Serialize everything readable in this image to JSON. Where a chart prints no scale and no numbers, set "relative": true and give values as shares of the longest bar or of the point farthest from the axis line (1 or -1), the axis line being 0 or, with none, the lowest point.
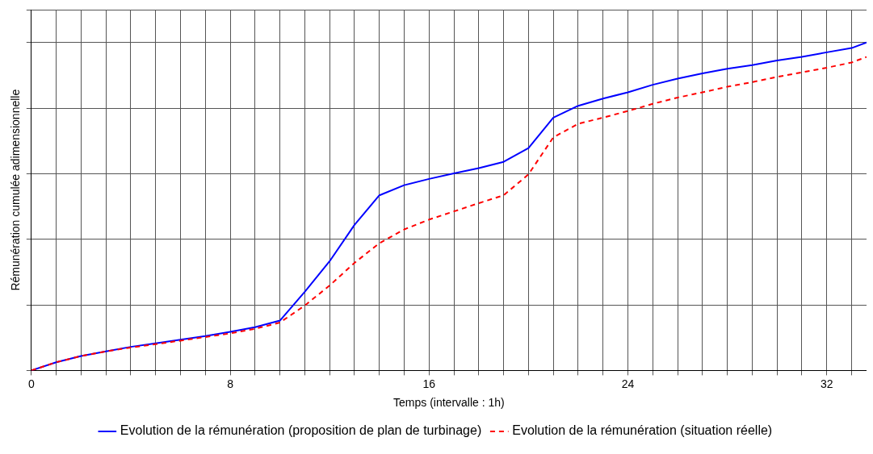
{
  "chart_data": {
    "type": "line",
    "relative": true,
    "xlabel": "Temps (intervalle : 1h)",
    "ylabel": "Rémunération cumulée adimensionnelle",
    "xlim": [
      0,
      33.6
    ],
    "xticks": [
      0,
      {
        "value": 1,
        "label": null
      },
      {
        "value": 2,
        "label": null
      },
      {
        "value": 3,
        "label": null
      },
      {
        "value": 4,
        "label": null
      },
      {
        "value": 5,
        "label": null
      },
      {
        "value": 6,
        "label": null
      },
      {
        "value": 7,
        "label": null
      },
      8,
      {
        "value": 9,
        "label": null
      },
      {
        "value": 10,
        "label": null
      },
      {
        "value": 11,
        "label": null
      },
      {
        "value": 12,
        "label": null
      },
      {
        "value": 13,
        "label": null
      },
      {
        "value": 14,
        "label": null
      },
      {
        "value": 15,
        "label": null
      },
      16,
      {
        "value": 17,
        "label": null
      },
      {
        "value": 18,
        "label": null
      },
      {
        "value": 19,
        "label": null
      },
      {
        "value": 20,
        "label": null
      },
      {
        "value": 21,
        "label": null
      },
      {
        "value": 22,
        "label": null
      },
      {
        "value": 23,
        "label": null
      },
      24,
      {
        "value": 25,
        "label": null
      },
      {
        "value": 26,
        "label": null
      },
      {
        "value": 27,
        "label": null
      },
      {
        "value": 28,
        "label": null
      },
      {
        "value": 29,
        "label": null
      },
      {
        "value": 30,
        "label": null
      },
      {
        "value": 31,
        "label": null
      },
      32,
      {
        "value": 33,
        "label": null
      }
    ],
    "x": [
      0,
      1,
      2,
      3,
      4,
      5,
      6,
      7,
      8,
      9,
      10,
      11,
      12,
      13,
      14,
      15,
      16,
      17,
      18,
      19,
      20,
      21,
      22,
      23,
      24,
      25,
      26,
      27,
      28,
      29,
      30,
      31,
      32,
      33,
      33.6
    ],
    "grid": true,
    "legend": "bottom",
    "marker": "none",
    "series": [
      {
        "name": "Evolution de la rémunération (proposition de plan de turbinage)",
        "color": "#0000ff",
        "line_style": "solid",
        "values": [
          0,
          0.025,
          0.044,
          0.058,
          0.072,
          0.083,
          0.094,
          0.105,
          0.118,
          0.132,
          0.152,
          0.24,
          0.333,
          0.444,
          0.534,
          0.565,
          0.584,
          0.601,
          0.617,
          0.636,
          0.678,
          0.771,
          0.807,
          0.829,
          0.848,
          0.871,
          0.89,
          0.906,
          0.92,
          0.931,
          0.945,
          0.956,
          0.97,
          0.983,
          1
        ]
      },
      {
        "name": "Evolution de la rémunération (situation réelle)",
        "color": "#ff0000",
        "line_style": "dashed",
        "values": [
          0,
          0.025,
          0.044,
          0.058,
          0.07,
          0.08,
          0.091,
          0.102,
          0.113,
          0.127,
          0.146,
          0.198,
          0.259,
          0.328,
          0.388,
          0.43,
          0.46,
          0.485,
          0.51,
          0.534,
          0.598,
          0.711,
          0.752,
          0.771,
          0.791,
          0.813,
          0.832,
          0.848,
          0.865,
          0.879,
          0.895,
          0.909,
          0.923,
          0.939,
          0.956
        ]
      }
    ]
  }
}
